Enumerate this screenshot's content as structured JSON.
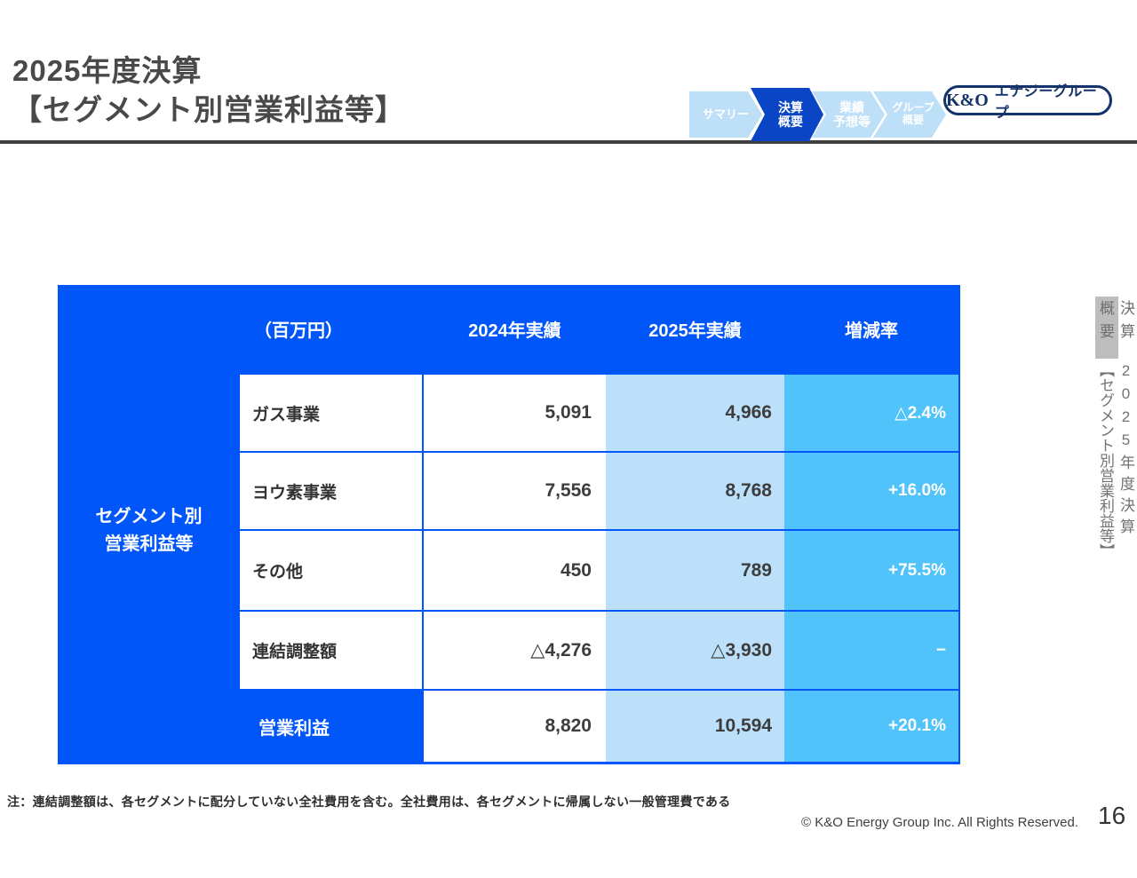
{
  "header": {
    "title_line1": "2025年度決算",
    "title_line2": "【セグメント別営業利益等】"
  },
  "nav": {
    "items": [
      {
        "lines": [
          "サマリー"
        ],
        "active": false
      },
      {
        "lines": [
          "決算",
          "概要"
        ],
        "active": true
      },
      {
        "lines": [
          "業績",
          "予想等"
        ],
        "active": false
      },
      {
        "lines": [
          "グループ",
          "概要"
        ],
        "active": false
      }
    ]
  },
  "logo": {
    "mark": "K&O",
    "name": "エナジーグループ"
  },
  "side_tab": {
    "section_line1": "決算",
    "section_line2": "概要",
    "slide_title_line1": "2025年度決算",
    "slide_title_line2": "【セグメント別営業利益等】"
  },
  "table": {
    "unit_label": "（百万円）",
    "columns": [
      "2024年実績",
      "2025年実績",
      "増減率"
    ],
    "group_label_line1": "セグメント別",
    "group_label_line2": "営業利益等",
    "rows": [
      {
        "label": "ガス事業",
        "y2024": "5,091",
        "y2025": "4,966",
        "change": "△2.4%"
      },
      {
        "label": "ヨウ素事業",
        "y2024": "7,556",
        "y2025": "8,768",
        "change": "+16.0%"
      },
      {
        "label": "その他",
        "y2024": "450",
        "y2025": "789",
        "change": "+75.5%"
      },
      {
        "label": "連結調整額",
        "y2024": "△4,276",
        "y2025": "△3,930",
        "change": "−"
      }
    ],
    "total": {
      "label": "営業利益",
      "y2024": "8,820",
      "y2025": "10,594",
      "change": "+20.1%"
    }
  },
  "footer": {
    "note": "注：連結調整額は、各セグメントに配分していない全社費用を含む。全社費用は、各セグメントに帰属しない一般管理費である",
    "copyright": "© K&O Energy Group Inc. All Rights Reserved.",
    "page_number": "16"
  },
  "colors": {
    "primary_blue": "#0156FA",
    "light_blue": "#BCE0FA",
    "sky_blue": "#4FC3FA",
    "nav_inactive": "#BDDFF8",
    "nav_active": "#0945C4",
    "logo_navy": "#14336B",
    "tab_gray": "#BDBDBD"
  }
}
